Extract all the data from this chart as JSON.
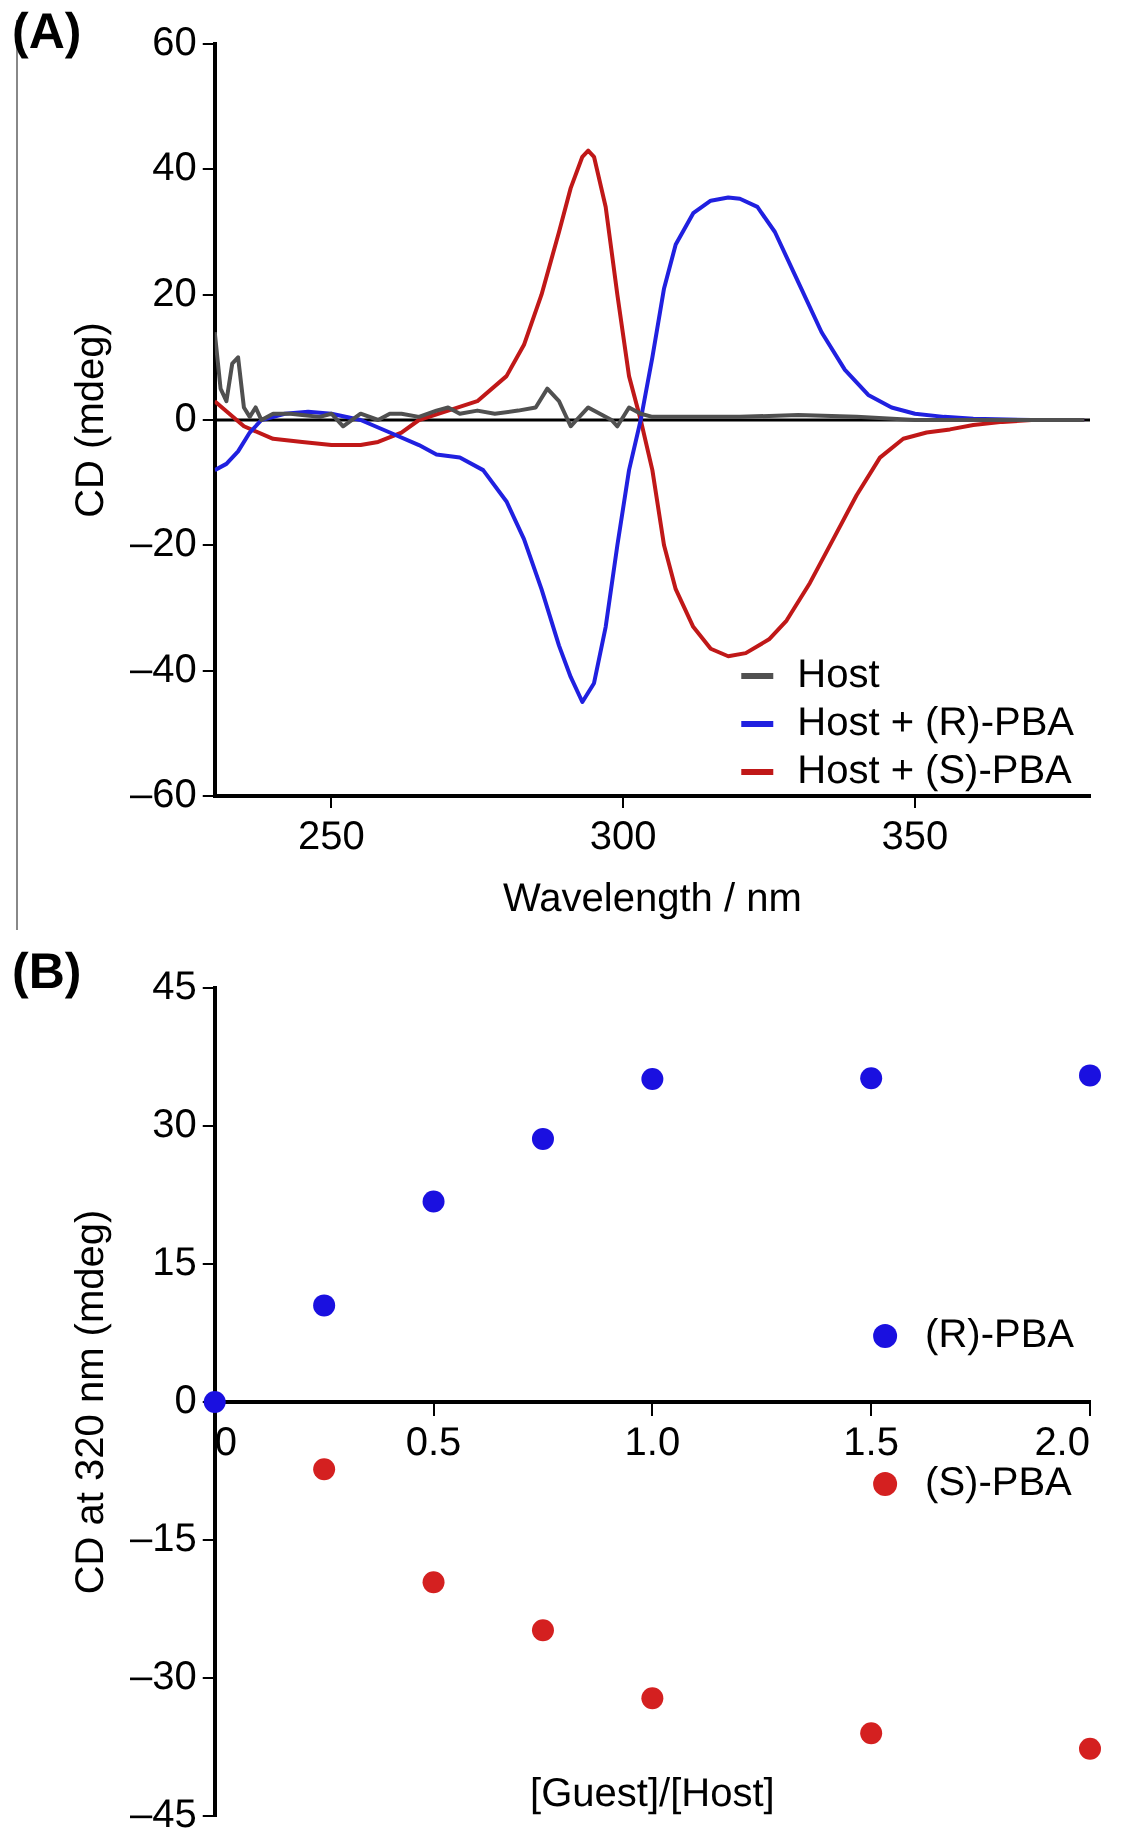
{
  "chart_data": [
    {
      "type": "line",
      "title": "(A)",
      "xlabel": "Wavelength / nm",
      "ylabel": "CD (mdeg)",
      "xlim": [
        230,
        380
      ],
      "xticks": [
        250,
        300,
        350
      ],
      "ylim": [
        -60,
        60
      ],
      "yticks": [
        {
          "value": -60,
          "label": "–60"
        },
        {
          "value": -40,
          "label": "–40"
        },
        {
          "value": -20,
          "label": "–20"
        },
        0,
        20,
        40,
        60
      ],
      "grid": false,
      "legend": "bottom right",
      "marker": "none",
      "line_style": "solid",
      "ref_lines": [
        {
          "axis": "y",
          "value": 0,
          "color": "#000000"
        }
      ],
      "series": [
        {
          "name": "Host",
          "color": "#505050",
          "x": [
            230,
            231,
            232,
            233,
            234,
            235,
            236,
            237,
            238,
            240,
            243,
            245,
            248,
            250,
            252,
            255,
            258,
            260,
            262,
            265,
            268,
            270,
            272,
            275,
            278,
            282,
            285,
            287,
            289,
            290,
            291,
            292,
            294,
            296,
            298,
            299,
            301,
            303,
            305,
            310,
            320,
            330,
            340,
            350,
            360,
            370,
            379
          ],
          "values": [
            14,
            5,
            3,
            9,
            10,
            2,
            0.5,
            2,
            0,
            1,
            1,
            0.8,
            0.5,
            1,
            -1,
            1,
            0,
            1,
            1,
            0.5,
            1.5,
            2,
            1,
            1.5,
            1,
            1.5,
            2,
            5,
            3,
            1,
            -1,
            0,
            2,
            1,
            0,
            -1,
            2,
            1,
            0.5,
            0.5,
            0.5,
            0.8,
            0.5,
            0,
            0,
            0,
            0
          ]
        },
        {
          "name": "Host + (R)-PBA",
          "color": "#2020e0",
          "x": [
            230,
            232,
            234,
            236,
            238,
            242,
            246,
            250,
            255,
            260,
            265,
            268,
            272,
            276,
            280,
            283,
            286,
            289,
            291,
            293,
            295,
            297,
            299,
            301,
            303,
            305,
            307,
            309,
            312,
            315,
            318,
            320,
            323,
            326,
            330,
            334,
            338,
            342,
            346,
            350,
            355,
            360,
            370,
            379
          ],
          "values": [
            -8,
            -7,
            -5,
            -2,
            0,
            1,
            1.3,
            1,
            0,
            -2,
            -4,
            -5.5,
            -6,
            -8,
            -13,
            -19,
            -27,
            -36,
            -41,
            -45,
            -42,
            -33,
            -20,
            -8,
            0,
            10,
            21,
            28,
            33,
            35,
            35.5,
            35.3,
            34,
            30,
            22,
            14,
            8,
            4,
            2,
            1,
            0.5,
            0.2,
            0,
            0
          ]
        },
        {
          "name": "Host + (S)-PBA",
          "color": "#c01818",
          "x": [
            230,
            235,
            240,
            245,
            250,
            255,
            258,
            262,
            265,
            270,
            275,
            280,
            283,
            286,
            289,
            291,
            293,
            294,
            295,
            297,
            299,
            301,
            303,
            305,
            307,
            309,
            312,
            315,
            318,
            321,
            325,
            328,
            332,
            336,
            340,
            344,
            348,
            352,
            356,
            360,
            365,
            370,
            375,
            379
          ],
          "values": [
            3,
            -1,
            -3,
            -3.5,
            -4,
            -4,
            -3.5,
            -2,
            0,
            1.5,
            3,
            7,
            12,
            20,
            30,
            37,
            42,
            43,
            42,
            34,
            20,
            7,
            0,
            -8,
            -20,
            -27,
            -33,
            -36.5,
            -37.7,
            -37.2,
            -35,
            -32,
            -26,
            -19,
            -12,
            -6,
            -3,
            -2,
            -1.5,
            -0.8,
            -0.3,
            0,
            0,
            0
          ]
        }
      ]
    },
    {
      "type": "scatter",
      "title": "(B)",
      "xlabel": "[Guest]/[Host]",
      "ylabel": "CD at 320 nm (mdeg)",
      "xlim": [
        0,
        2
      ],
      "xticks": [
        0,
        0.5,
        {
          "value": 1,
          "label": "1.0"
        },
        1.5,
        {
          "value": 2,
          "label": "2.0"
        }
      ],
      "ylim": [
        -45,
        45
      ],
      "yticks": [
        {
          "value": -45,
          "label": "–45"
        },
        {
          "value": -30,
          "label": "–30"
        },
        {
          "value": -15,
          "label": "–15"
        },
        0,
        15,
        30,
        45
      ],
      "grid": false,
      "legend": "right",
      "marker": "circle",
      "series": [
        {
          "name": "(R)-PBA",
          "color": "#1a10e0",
          "x": [
            0,
            0.25,
            0.5,
            0.75,
            1,
            1.5,
            2
          ],
          "values": [
            0,
            10.5,
            21.8,
            28.6,
            35.1,
            35.2,
            35.5
          ]
        },
        {
          "name": "(S)-PBA",
          "color": "#d42020",
          "x": [
            0.25,
            0.5,
            0.75,
            1,
            1.5,
            2
          ],
          "values": [
            -7.3,
            -19.6,
            -24.8,
            -32.2,
            -36.0,
            -37.7
          ]
        }
      ]
    }
  ]
}
